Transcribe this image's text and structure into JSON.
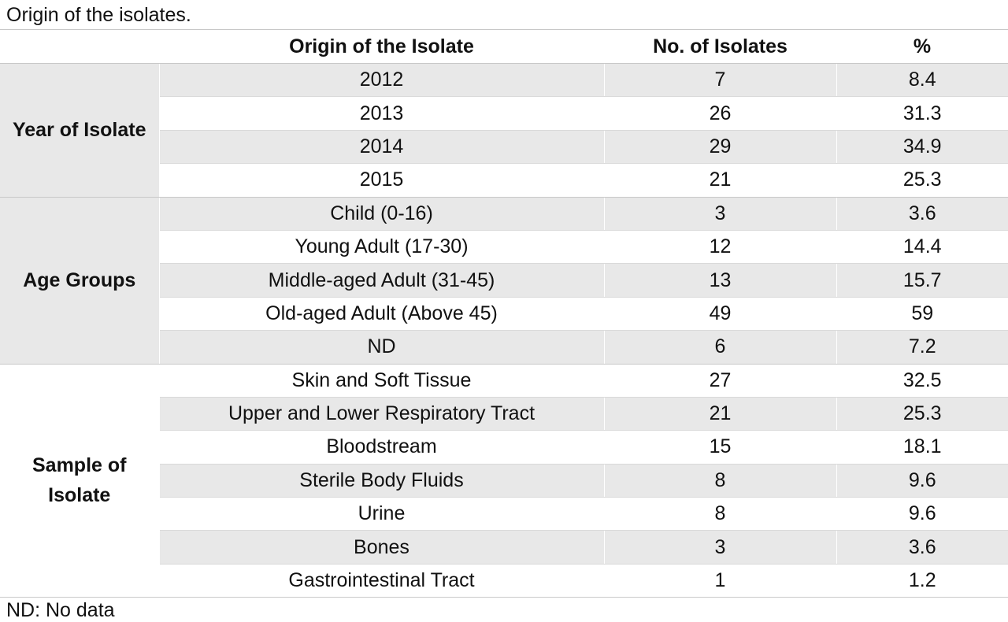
{
  "caption": "Origin of the isolates.",
  "headers": {
    "group": "",
    "origin": "Origin of the Isolate",
    "count": "No. of Isolates",
    "percent": "%"
  },
  "sections": [
    {
      "group": "Year of Isolate",
      "rows": [
        {
          "origin": "2012",
          "count": "7",
          "percent": "8.4"
        },
        {
          "origin": "2013",
          "count": "26",
          "percent": "31.3"
        },
        {
          "origin": "2014",
          "count": "29",
          "percent": "34.9"
        },
        {
          "origin": "2015",
          "count": "21",
          "percent": "25.3"
        }
      ]
    },
    {
      "group": "Age Groups",
      "rows": [
        {
          "origin": "Child (0-16)",
          "count": "3",
          "percent": "3.6"
        },
        {
          "origin": "Young Adult (17-30)",
          "count": "12",
          "percent": "14.4"
        },
        {
          "origin": "Middle-aged Adult (31-45)",
          "count": "13",
          "percent": "15.7"
        },
        {
          "origin": "Old-aged Adult (Above 45)",
          "count": "49",
          "percent": "59"
        },
        {
          "origin": "ND",
          "count": "6",
          "percent": "7.2"
        }
      ]
    },
    {
      "group": "Sample of Isolate",
      "rows": [
        {
          "origin": "Skin and Soft Tissue",
          "count": "27",
          "percent": "32.5"
        },
        {
          "origin": "Upper and Lower Respiratory Tract",
          "count": "21",
          "percent": "25.3"
        },
        {
          "origin": "Bloodstream",
          "count": "15",
          "percent": "18.1"
        },
        {
          "origin": "Sterile Body Fluids",
          "count": "8",
          "percent": "9.6"
        },
        {
          "origin": "Urine",
          "count": "8",
          "percent": "9.6"
        },
        {
          "origin": "Bones",
          "count": "3",
          "percent": "3.6"
        },
        {
          "origin": "Gastrointestinal Tract",
          "count": "1",
          "percent": "1.2"
        }
      ]
    }
  ],
  "footnote": "ND: No data"
}
